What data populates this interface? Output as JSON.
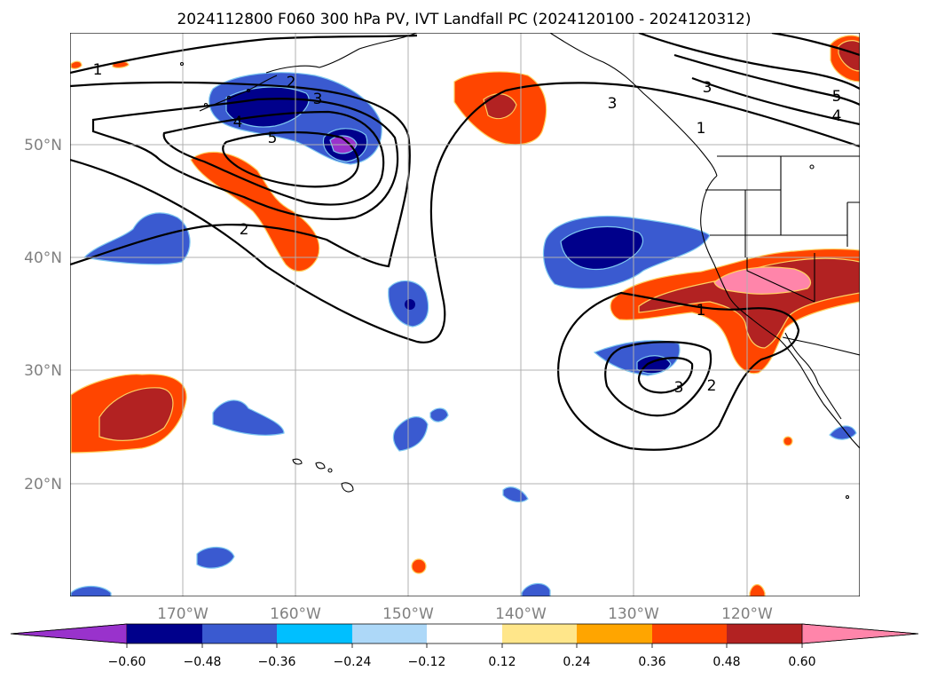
{
  "title": "2024112800 F060 300 hPa PV, IVT Landfall PC (2024120100 - 2024120312)",
  "map": {
    "lat_ticks": [
      "50°N",
      "40°N",
      "30°N",
      "20°N"
    ],
    "lon_ticks": [
      "170°W",
      "160°W",
      "150°W",
      "140°W",
      "130°W",
      "120°W"
    ],
    "gridlines": true,
    "colors": {
      "gridline": "#b0b0b0",
      "coastline": "#000000",
      "contour": "#000000",
      "tick_label": "#808080"
    },
    "contour_labels": [
      "1",
      "2",
      "3",
      "4",
      "5",
      "2",
      "3",
      "1",
      "3",
      "4",
      "5",
      "1",
      "2",
      "3"
    ]
  },
  "colorbar": {
    "tick_labels": [
      "−0.60",
      "−0.48",
      "−0.36",
      "−0.24",
      "−0.12",
      "0.12",
      "0.24",
      "0.36",
      "0.48",
      "0.60"
    ],
    "colors": [
      "#9932cc",
      "#00008b",
      "#3a5ad0",
      "#00bfff",
      "#add8f8",
      "#ffffff",
      "#ffe68a",
      "#ffa500",
      "#ff4500",
      "#b22222",
      "#ff85aa"
    ]
  }
}
